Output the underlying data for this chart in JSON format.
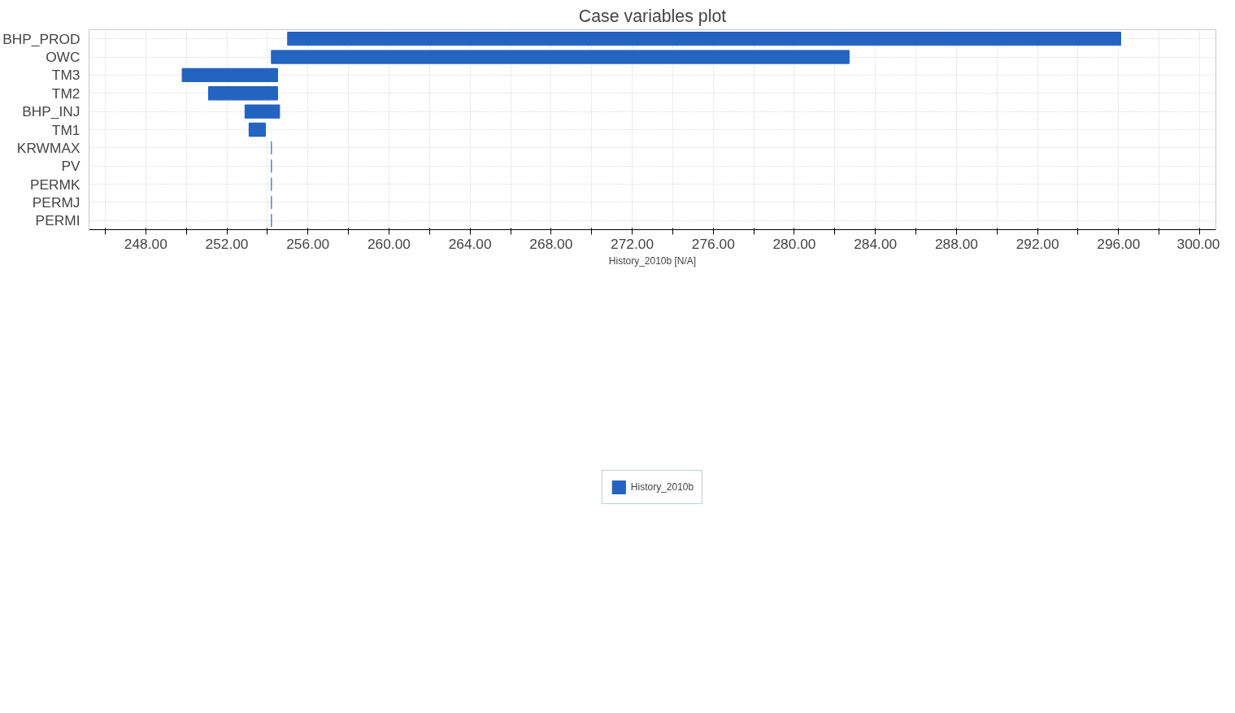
{
  "chart_data": {
    "type": "bar",
    "orientation": "horizontal",
    "title": "Case variables plot",
    "xlabel": "History_2010b [N/A]",
    "categories": [
      "BHP_PROD",
      "OWC",
      "TM3",
      "TM2",
      "BHP_INJ",
      "TM1",
      "KRWMAX",
      "PV",
      "PERMK",
      "PERMJ",
      "PERMI"
    ],
    "series": [
      {
        "name": "History_2010b",
        "color": "#2563c0",
        "base": [
          255.0,
          254.2,
          249.8,
          251.1,
          252.9,
          253.1,
          254.2,
          254.2,
          254.2,
          254.2,
          254.2
        ],
        "values": [
          41.1,
          28.5,
          4.7,
          3.4,
          1.7,
          0.8,
          0,
          0,
          0,
          0,
          0
        ]
      }
    ],
    "xlim": [
      245.2,
      300.8
    ],
    "xticks": [
      {
        "value": 246,
        "label": null
      },
      {
        "value": 248,
        "label": "248.00"
      },
      {
        "value": 250,
        "label": null
      },
      {
        "value": 252,
        "label": "252.00"
      },
      {
        "value": 254,
        "label": null
      },
      {
        "value": 256,
        "label": "256.00"
      },
      {
        "value": 258,
        "label": null
      },
      {
        "value": 260,
        "label": "260.00"
      },
      {
        "value": 262,
        "label": null
      },
      {
        "value": 264,
        "label": "264.00"
      },
      {
        "value": 266,
        "label": null
      },
      {
        "value": 268,
        "label": "268.00"
      },
      {
        "value": 270,
        "label": null
      },
      {
        "value": 272,
        "label": "272.00"
      },
      {
        "value": 274,
        "label": null
      },
      {
        "value": 276,
        "label": "276.00"
      },
      {
        "value": 278,
        "label": null
      },
      {
        "value": 280,
        "label": "280.00"
      },
      {
        "value": 282,
        "label": null
      },
      {
        "value": 284,
        "label": "284.00"
      },
      {
        "value": 286,
        "label": null
      },
      {
        "value": 288,
        "label": "288.00"
      },
      {
        "value": 290,
        "label": null
      },
      {
        "value": 292,
        "label": "292.00"
      },
      {
        "value": 294,
        "label": null
      },
      {
        "value": 296,
        "label": "296.00"
      },
      {
        "value": 298,
        "label": null
      },
      {
        "value": 300,
        "label": "300.00"
      }
    ],
    "grid": true,
    "legend": "bottom"
  }
}
